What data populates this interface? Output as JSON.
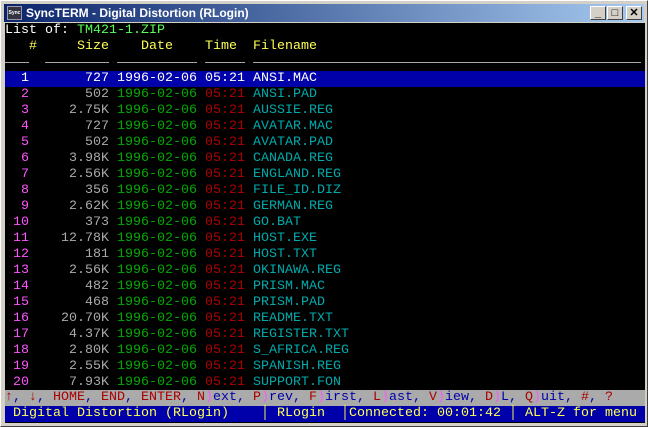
{
  "window": {
    "title": "SyncTERM - Digital Distortion (RLogin)",
    "icon": "syncterm-app-icon",
    "buttons": [
      "minimize",
      "maximize",
      "close"
    ]
  },
  "listing": {
    "label": "List of:",
    "archive": "TM421-1.ZIP",
    "columns": [
      "#",
      "Size",
      "Date",
      "Time",
      "Filename"
    ],
    "selected_index": 0,
    "rows": [
      [
        "1",
        "727",
        "1996-02-06",
        "05:21",
        "ANSI.MAC"
      ],
      [
        "2",
        "502",
        "1996-02-06",
        "05:21",
        "ANSI.PAD"
      ],
      [
        "3",
        "2.75K",
        "1996-02-06",
        "05:21",
        "AUSSIE.REG"
      ],
      [
        "4",
        "727",
        "1996-02-06",
        "05:21",
        "AVATAR.MAC"
      ],
      [
        "5",
        "502",
        "1996-02-06",
        "05:21",
        "AVATAR.PAD"
      ],
      [
        "6",
        "3.98K",
        "1996-02-06",
        "05:21",
        "CANADA.REG"
      ],
      [
        "7",
        "2.56K",
        "1996-02-06",
        "05:21",
        "ENGLAND.REG"
      ],
      [
        "8",
        "356",
        "1996-02-06",
        "05:21",
        "FILE_ID.DIZ"
      ],
      [
        "9",
        "2.62K",
        "1996-02-06",
        "05:21",
        "GERMAN.REG"
      ],
      [
        "10",
        "373",
        "1996-02-06",
        "05:21",
        "GO.BAT"
      ],
      [
        "11",
        "12.78K",
        "1996-02-06",
        "05:21",
        "HOST.EXE"
      ],
      [
        "12",
        "181",
        "1996-02-06",
        "05:21",
        "HOST.TXT"
      ],
      [
        "13",
        "2.56K",
        "1996-02-06",
        "05:21",
        "OKINAWA.REG"
      ],
      [
        "14",
        "482",
        "1996-02-06",
        "05:21",
        "PRISM.MAC"
      ],
      [
        "15",
        "468",
        "1996-02-06",
        "05:21",
        "PRISM.PAD"
      ],
      [
        "16",
        "20.70K",
        "1996-02-06",
        "05:21",
        "README.TXT"
      ],
      [
        "17",
        "4.37K",
        "1996-02-06",
        "05:21",
        "REGISTER.TXT"
      ],
      [
        "18",
        "2.80K",
        "1996-02-06",
        "05:21",
        "S_AFRICA.REG"
      ],
      [
        "19",
        "2.55K",
        "1996-02-06",
        "05:21",
        "SPANISH.REG"
      ],
      [
        "20",
        "7.93K",
        "1996-02-06",
        "05:21",
        "SUPPORT.FON"
      ]
    ]
  },
  "help": [
    [
      "↑",
      ""
    ],
    [
      "↓",
      ""
    ],
    [
      "HOME",
      ""
    ],
    [
      "END",
      ""
    ],
    [
      "ENTER",
      ""
    ],
    [
      "N",
      "ext"
    ],
    [
      "P",
      "rev"
    ],
    [
      "F",
      "irst"
    ],
    [
      "L",
      "ast"
    ],
    [
      "V",
      "iew"
    ],
    [
      "D",
      "L"
    ],
    [
      "Q",
      "uit"
    ],
    [
      "#",
      ""
    ],
    [
      "?",
      ""
    ]
  ],
  "status": {
    "bbs": "Digital Distortion (RLogin)",
    "protocol": "RLogin",
    "connected": "Connected: 00:01:42",
    "menu_hint": "ALT-Z for menu"
  },
  "colors": {
    "selection": "#0000aa",
    "help_bg": "#aaaaaa",
    "status_bg": "#0000aa",
    "status_fg": "#ffff55"
  }
}
